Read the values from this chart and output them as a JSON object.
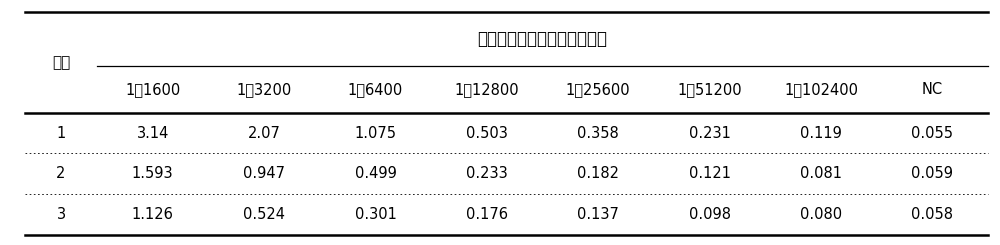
{
  "title": "抗卡那霉素多抗血清稀释倍数",
  "row_header": "鼠号",
  "col_headers": [
    "1：1600",
    "1：3200",
    "1：6400",
    "1：12800",
    "1：25600",
    "1：51200",
    "1：102400",
    "NC"
  ],
  "row_labels": [
    "1",
    "2",
    "3"
  ],
  "data": [
    [
      "3.14",
      "2.07",
      "1.075",
      "0.503",
      "0.358",
      "0.231",
      "0.119",
      "0.055"
    ],
    [
      "1.593",
      "0.947",
      "0.499",
      "0.233",
      "0.182",
      "0.121",
      "0.081",
      "0.059"
    ],
    [
      "1.126",
      "0.524",
      "0.301",
      "0.176",
      "0.137",
      "0.098",
      "0.080",
      "0.058"
    ]
  ],
  "bg_color": "#ffffff",
  "text_color": "#000000",
  "line_color": "#000000",
  "title_fontsize": 12,
  "header_fontsize": 10.5,
  "cell_fontsize": 10.5,
  "row_header_fontsize": 11
}
